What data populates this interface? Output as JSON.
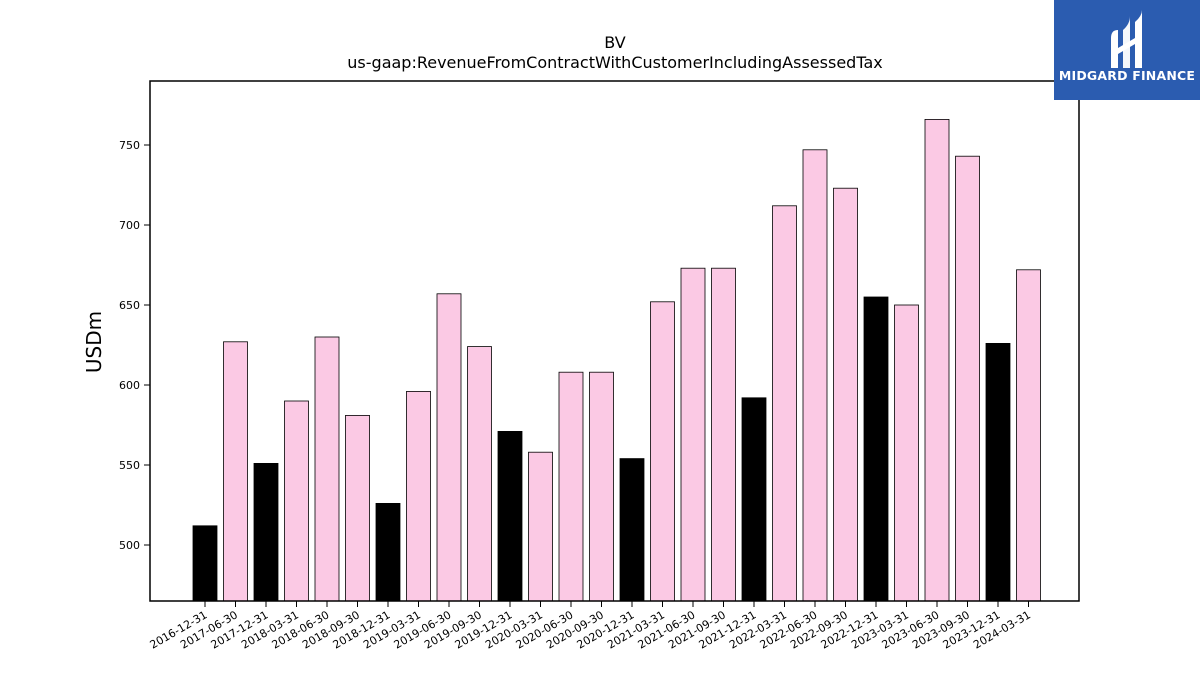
{
  "logo": {
    "text": "MIDGARD FINANCE",
    "background": "#2b5cb0"
  },
  "chart_data": {
    "type": "bar",
    "title": "BV",
    "subtitle": "us-gaap:RevenueFromContractWithCustomerIncludingAssessedTax",
    "xlabel": "",
    "ylabel": "USDm",
    "ylim": [
      465,
      790
    ],
    "yticks": [
      500,
      550,
      600,
      650,
      700,
      750
    ],
    "grid": false,
    "colors": {
      "quarter": "#fbc9e4",
      "year_end": "#000000",
      "edge": "#000000"
    },
    "categories": [
      "2016-12-31",
      "2017-06-30",
      "2017-12-31",
      "2018-03-31",
      "2018-06-30",
      "2018-09-30",
      "2018-12-31",
      "2019-03-31",
      "2019-06-30",
      "2019-09-30",
      "2019-12-31",
      "2020-03-31",
      "2020-06-30",
      "2020-09-30",
      "2020-12-31",
      "2021-03-31",
      "2021-06-30",
      "2021-09-30",
      "2021-12-31",
      "2022-03-31",
      "2022-06-30",
      "2022-09-30",
      "2022-12-31",
      "2023-03-31",
      "2023-06-30",
      "2023-09-30",
      "2023-12-31",
      "2024-03-31"
    ],
    "values": [
      512,
      627,
      551,
      590,
      630,
      581,
      526,
      596,
      657,
      624,
      571,
      558,
      608,
      608,
      554,
      652,
      673,
      673,
      592,
      712,
      747,
      723,
      655,
      650,
      766,
      743,
      626,
      672
    ],
    "highlight": [
      true,
      false,
      true,
      false,
      false,
      false,
      true,
      false,
      false,
      false,
      true,
      false,
      false,
      false,
      true,
      false,
      false,
      false,
      true,
      false,
      false,
      false,
      true,
      false,
      false,
      false,
      true,
      false
    ]
  }
}
